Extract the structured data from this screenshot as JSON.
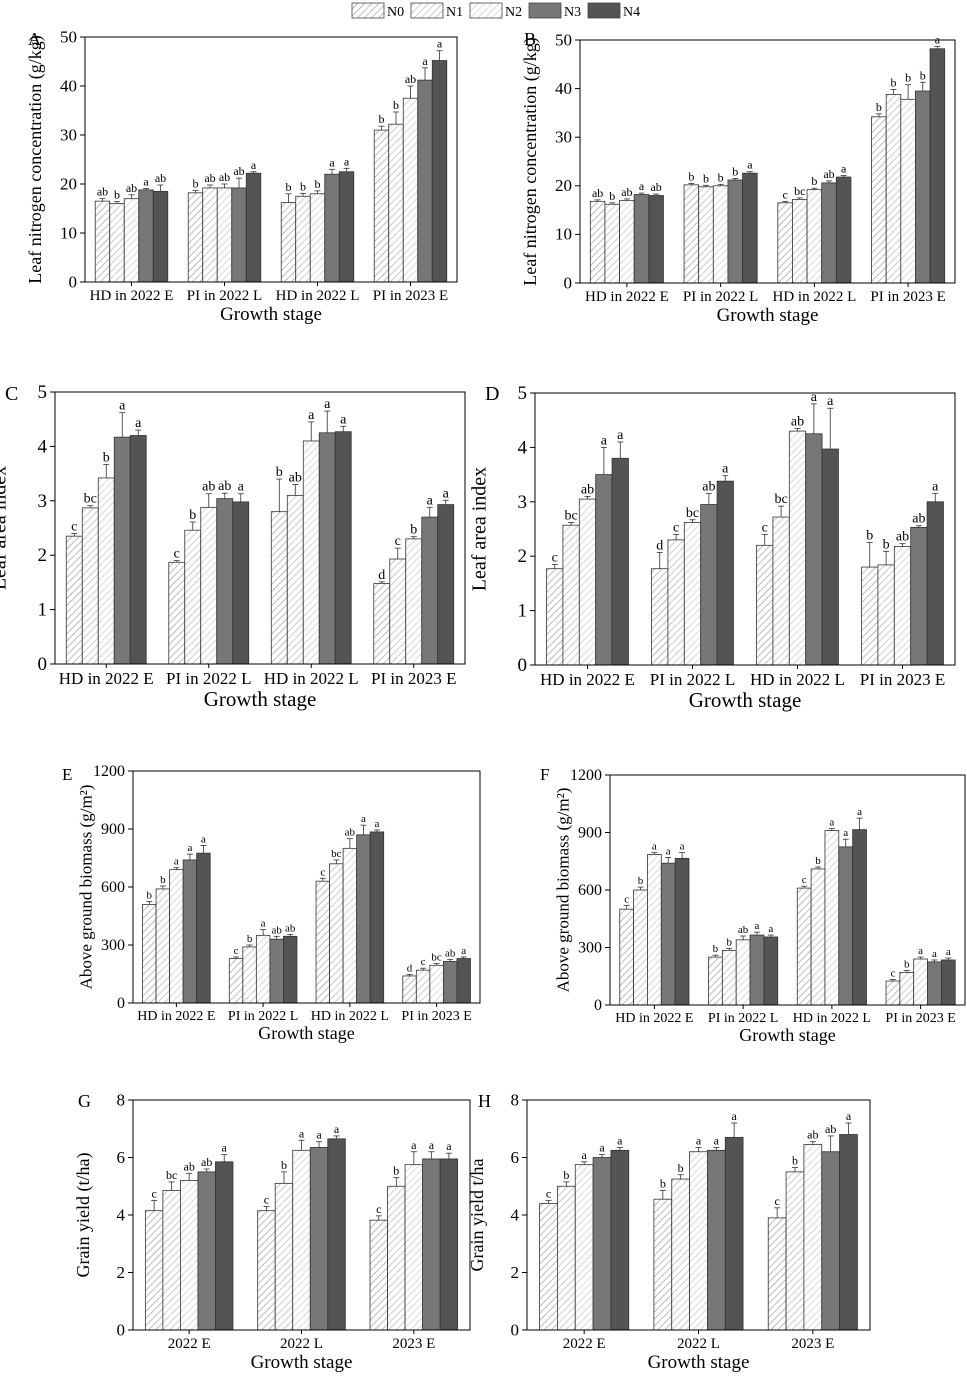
{
  "legend": {
    "entries": [
      "N0",
      "N1",
      "N2",
      "N3",
      "N4"
    ],
    "placement": "top-center"
  },
  "series_styles": [
    {
      "fill": "#ffffff",
      "hatch": "#9a9a9a"
    },
    {
      "fill": "#ffffff",
      "hatch": "#b4b4b4"
    },
    {
      "fill": "#ffffff",
      "hatch": "#c8c8c8"
    },
    {
      "fill": "#777777",
      "hatch": ""
    },
    {
      "fill": "#545454",
      "hatch": ""
    }
  ],
  "chart_data": [
    {
      "panel": "A",
      "type": "bar",
      "ylabel": "Leaf nitrogen concentration (g/kg)",
      "xlabel": "Growth stage",
      "ylim": [
        0,
        50
      ],
      "yticks": [
        0,
        10,
        20,
        30,
        40,
        50
      ],
      "categories": [
        "HD in 2022 E",
        "PI in 2022 L",
        "HD in 2022 L",
        "PI in 2023 E"
      ],
      "series": [
        {
          "name": "N0",
          "values": [
            16.5,
            18.2,
            16.2,
            31.0
          ],
          "errors": [
            0.5,
            0.5,
            1.8,
            0.8
          ],
          "labels": [
            "ab",
            "b",
            "b",
            "b"
          ]
        },
        {
          "name": "N1",
          "values": [
            16.0,
            19.2,
            17.5,
            32.2
          ],
          "errors": [
            0.4,
            0.6,
            0.6,
            2.5
          ],
          "labels": [
            "b",
            "ab",
            "b",
            "b"
          ]
        },
        {
          "name": "N2",
          "values": [
            17.0,
            19.2,
            18.0,
            37.5
          ],
          "errors": [
            0.8,
            0.8,
            0.6,
            2.5
          ],
          "labels": [
            "ab",
            "ab",
            "b",
            "ab"
          ]
        },
        {
          "name": "N3",
          "values": [
            18.8,
            19.2,
            22.0,
            41.2
          ],
          "errors": [
            0.3,
            2.0,
            1.0,
            2.5
          ],
          "labels": [
            "a",
            "ab",
            "a",
            "a"
          ]
        },
        {
          "name": "N4",
          "values": [
            18.5,
            22.2,
            22.5,
            45.2
          ],
          "errors": [
            1.3,
            0.3,
            0.7,
            2.0
          ],
          "labels": [
            "ab",
            "a",
            "a",
            "a"
          ]
        }
      ]
    },
    {
      "panel": "B",
      "type": "bar",
      "ylabel": "Leaf nitrogen concentration (g/kg)",
      "xlabel": "Growth stage",
      "ylim": [
        0,
        50
      ],
      "yticks": [
        0,
        10,
        20,
        30,
        40,
        50
      ],
      "categories": [
        "HD in 2022 E",
        "PI in 2022 L",
        "HD in 2022 L",
        "PI in 2023 E"
      ],
      "series": [
        {
          "name": "N0",
          "values": [
            16.8,
            20.2,
            16.5,
            34.2
          ],
          "errors": [
            0.3,
            0.3,
            0.3,
            0.6
          ],
          "labels": [
            "ab",
            "b",
            "c",
            "b"
          ]
        },
        {
          "name": "N1",
          "values": [
            16.2,
            19.8,
            17.2,
            38.8
          ],
          "errors": [
            0.3,
            0.3,
            0.3,
            1.0
          ],
          "labels": [
            "b",
            "b",
            "bc",
            "b"
          ]
        },
        {
          "name": "N2",
          "values": [
            17.0,
            20.0,
            19.2,
            37.8
          ],
          "errors": [
            0.3,
            0.3,
            0.3,
            3.0
          ],
          "labels": [
            "ab",
            "b",
            "b",
            "b"
          ]
        },
        {
          "name": "N3",
          "values": [
            18.2,
            21.2,
            20.6,
            39.5
          ],
          "errors": [
            0.3,
            0.3,
            0.4,
            1.8
          ],
          "labels": [
            "a",
            "b",
            "ab",
            "b"
          ]
        },
        {
          "name": "N4",
          "values": [
            18.0,
            22.6,
            21.8,
            48.2
          ],
          "errors": [
            0.3,
            0.3,
            0.3,
            0.5
          ],
          "labels": [
            "ab",
            "a",
            "a",
            "a"
          ]
        }
      ]
    },
    {
      "panel": "C",
      "type": "bar",
      "ylabel": "Leaf area index",
      "xlabel": "Growth stage",
      "ylim": [
        0,
        5
      ],
      "yticks": [
        0,
        1,
        2,
        3,
        4,
        5
      ],
      "categories": [
        "HD in 2022 E",
        "PI in 2022 L",
        "HD in 2022 L",
        "PI in 2023 E"
      ],
      "series": [
        {
          "name": "N0",
          "values": [
            2.35,
            1.87,
            2.8,
            1.48
          ],
          "errors": [
            0.05,
            0.03,
            0.6,
            0.03
          ],
          "labels": [
            "c",
            "c",
            "b",
            "d"
          ]
        },
        {
          "name": "N1",
          "values": [
            2.87,
            2.46,
            3.1,
            1.93
          ],
          "errors": [
            0.04,
            0.15,
            0.2,
            0.2
          ],
          "labels": [
            "bc",
            "b",
            "ab",
            "c"
          ]
        },
        {
          "name": "N2",
          "values": [
            3.42,
            2.88,
            4.1,
            2.3
          ],
          "errors": [
            0.25,
            0.25,
            0.35,
            0.04
          ],
          "labels": [
            "b",
            "ab",
            "a",
            "b"
          ]
        },
        {
          "name": "N3",
          "values": [
            4.17,
            3.04,
            4.25,
            2.7
          ],
          "errors": [
            0.45,
            0.1,
            0.4,
            0.18
          ],
          "labels": [
            "a",
            "ab",
            "a",
            "a"
          ]
        },
        {
          "name": "N4",
          "values": [
            4.2,
            2.98,
            4.27,
            2.93
          ],
          "errors": [
            0.1,
            0.15,
            0.1,
            0.08
          ],
          "labels": [
            "a",
            "a",
            "a",
            "a"
          ]
        }
      ]
    },
    {
      "panel": "D",
      "type": "bar",
      "ylabel": "Leaf area index",
      "xlabel": "Growth stage",
      "ylim": [
        0,
        5
      ],
      "yticks": [
        0,
        1,
        2,
        3,
        4,
        5
      ],
      "categories": [
        "HD in 2022 E",
        "PI in 2022 L",
        "HD in 2022 L",
        "PI in 2023 E"
      ],
      "series": [
        {
          "name": "N0",
          "values": [
            1.77,
            1.77,
            2.2,
            1.8
          ],
          "errors": [
            0.08,
            0.3,
            0.2,
            0.45
          ],
          "labels": [
            "c",
            "d",
            "c",
            "b"
          ]
        },
        {
          "name": "N1",
          "values": [
            2.57,
            2.3,
            2.72,
            1.84
          ],
          "errors": [
            0.05,
            0.1,
            0.2,
            0.25
          ],
          "labels": [
            "bc",
            "c",
            "bc",
            "b"
          ]
        },
        {
          "name": "N2",
          "values": [
            3.05,
            2.62,
            4.3,
            2.18
          ],
          "errors": [
            0.05,
            0.05,
            0.05,
            0.05
          ],
          "labels": [
            "ab",
            "bc",
            "ab",
            "ab"
          ]
        },
        {
          "name": "N3",
          "values": [
            3.5,
            2.95,
            4.25,
            2.53
          ],
          "errors": [
            0.5,
            0.2,
            0.55,
            0.03
          ],
          "labels": [
            "a",
            "ab",
            "a",
            "ab"
          ]
        },
        {
          "name": "N4",
          "values": [
            3.8,
            3.38,
            3.97,
            3.0
          ],
          "errors": [
            0.3,
            0.1,
            0.75,
            0.15
          ],
          "labels": [
            "a",
            "a",
            "a",
            "a"
          ]
        }
      ]
    },
    {
      "panel": "E",
      "type": "bar",
      "ylabel": "Above ground biomass (g/m²)",
      "xlabel": "Growth stage",
      "ylim": [
        0,
        1200
      ],
      "yticks": [
        0,
        300,
        600,
        900,
        1200
      ],
      "categories": [
        "HD in 2022 E",
        "PI in 2022 L",
        "HD in 2022 L",
        "PI in 2023 E"
      ],
      "series": [
        {
          "name": "N0",
          "values": [
            510,
            230,
            630,
            140
          ],
          "errors": [
            15,
            8,
            15,
            8
          ],
          "labels": [
            "b",
            "c",
            "c",
            "d"
          ]
        },
        {
          "name": "N1",
          "values": [
            590,
            290,
            720,
            170
          ],
          "errors": [
            15,
            10,
            20,
            10
          ],
          "labels": [
            "b",
            "b",
            "bc",
            "c"
          ]
        },
        {
          "name": "N2",
          "values": [
            690,
            350,
            800,
            195
          ],
          "errors": [
            10,
            30,
            50,
            10
          ],
          "labels": [
            "a",
            "a",
            "ab",
            "bc"
          ]
        },
        {
          "name": "N3",
          "values": [
            740,
            330,
            870,
            215
          ],
          "errors": [
            30,
            15,
            50,
            10
          ],
          "labels": [
            "a",
            "ab",
            "a",
            "ab"
          ]
        },
        {
          "name": "N4",
          "values": [
            775,
            345,
            885,
            230
          ],
          "errors": [
            40,
            10,
            10,
            8
          ],
          "labels": [
            "a",
            "ab",
            "a",
            "a"
          ]
        }
      ]
    },
    {
      "panel": "F",
      "type": "bar",
      "ylabel": "Above ground biomass (g/m²)",
      "xlabel": "Growth stage",
      "ylim": [
        0,
        1200
      ],
      "yticks": [
        0,
        300,
        600,
        900,
        1200
      ],
      "categories": [
        "HD in 2022 E",
        "PI in 2022 L",
        "HD in 2022 L",
        "PI in 2023 E"
      ],
      "series": [
        {
          "name": "N0",
          "values": [
            500,
            250,
            610,
            125
          ],
          "errors": [
            20,
            10,
            10,
            8
          ],
          "labels": [
            "c",
            "b",
            "c",
            "c"
          ]
        },
        {
          "name": "N1",
          "values": [
            600,
            285,
            710,
            170
          ],
          "errors": [
            15,
            10,
            10,
            10
          ],
          "labels": [
            "b",
            "b",
            "b",
            "b"
          ]
        },
        {
          "name": "N2",
          "values": [
            785,
            340,
            910,
            240
          ],
          "errors": [
            10,
            20,
            10,
            10
          ],
          "labels": [
            "a",
            "ab",
            "a",
            "a"
          ]
        },
        {
          "name": "N3",
          "values": [
            740,
            365,
            825,
            225
          ],
          "errors": [
            30,
            15,
            40,
            10
          ],
          "labels": [
            "a",
            "a",
            "a",
            "a"
          ]
        },
        {
          "name": "N4",
          "values": [
            765,
            355,
            915,
            235
          ],
          "errors": [
            30,
            10,
            60,
            10
          ],
          "labels": [
            "a",
            "a",
            "a",
            "a"
          ]
        }
      ]
    },
    {
      "panel": "G",
      "type": "bar",
      "ylabel": "Grain yield (t/ha)",
      "xlabel": "Growth stage",
      "ylim": [
        0,
        8
      ],
      "yticks": [
        0,
        2,
        4,
        6,
        8
      ],
      "categories": [
        "2022 E",
        "2022 L",
        "2023 E"
      ],
      "series": [
        {
          "name": "N0",
          "values": [
            4.15,
            4.15,
            3.82
          ],
          "errors": [
            0.35,
            0.15,
            0.15
          ],
          "labels": [
            "c",
            "c",
            "c"
          ]
        },
        {
          "name": "N1",
          "values": [
            4.85,
            5.1,
            5.0
          ],
          "errors": [
            0.3,
            0.4,
            0.3
          ],
          "labels": [
            "bc",
            "b",
            "b"
          ]
        },
        {
          "name": "N2",
          "values": [
            5.2,
            6.25,
            5.75
          ],
          "errors": [
            0.25,
            0.35,
            0.45
          ],
          "labels": [
            "ab",
            "a",
            "a"
          ]
        },
        {
          "name": "N3",
          "values": [
            5.5,
            6.35,
            5.95
          ],
          "errors": [
            0.1,
            0.2,
            0.25
          ],
          "labels": [
            "ab",
            "a",
            "a"
          ]
        },
        {
          "name": "N4",
          "values": [
            5.85,
            6.65,
            5.95
          ],
          "errors": [
            0.25,
            0.1,
            0.2
          ],
          "labels": [
            "a",
            "a",
            "a"
          ]
        }
      ]
    },
    {
      "panel": "H",
      "type": "bar",
      "ylabel": "Grain yield  t/ha",
      "xlabel": "Growth stage",
      "ylim": [
        0,
        8
      ],
      "yticks": [
        0,
        2,
        4,
        6,
        8
      ],
      "categories": [
        "2022 E",
        "2022 L",
        "2023 E"
      ],
      "series": [
        {
          "name": "N0",
          "values": [
            4.4,
            4.55,
            3.9
          ],
          "errors": [
            0.1,
            0.3,
            0.35
          ],
          "labels": [
            "c",
            "b",
            "c"
          ]
        },
        {
          "name": "N1",
          "values": [
            5.0,
            5.25,
            5.5
          ],
          "errors": [
            0.15,
            0.15,
            0.15
          ],
          "labels": [
            "b",
            "b",
            "b"
          ]
        },
        {
          "name": "N2",
          "values": [
            5.75,
            6.2,
            6.45
          ],
          "errors": [
            0.1,
            0.15,
            0.1
          ],
          "labels": [
            "a",
            "a",
            "ab"
          ]
        },
        {
          "name": "N3",
          "values": [
            6.0,
            6.25,
            6.2
          ],
          "errors": [
            0.1,
            0.1,
            0.55
          ],
          "labels": [
            "a",
            "a",
            "ab"
          ]
        },
        {
          "name": "N4",
          "values": [
            6.25,
            6.7,
            6.8
          ],
          "errors": [
            0.1,
            0.5,
            0.4
          ],
          "labels": [
            "a",
            "a",
            "a"
          ]
        }
      ]
    }
  ]
}
